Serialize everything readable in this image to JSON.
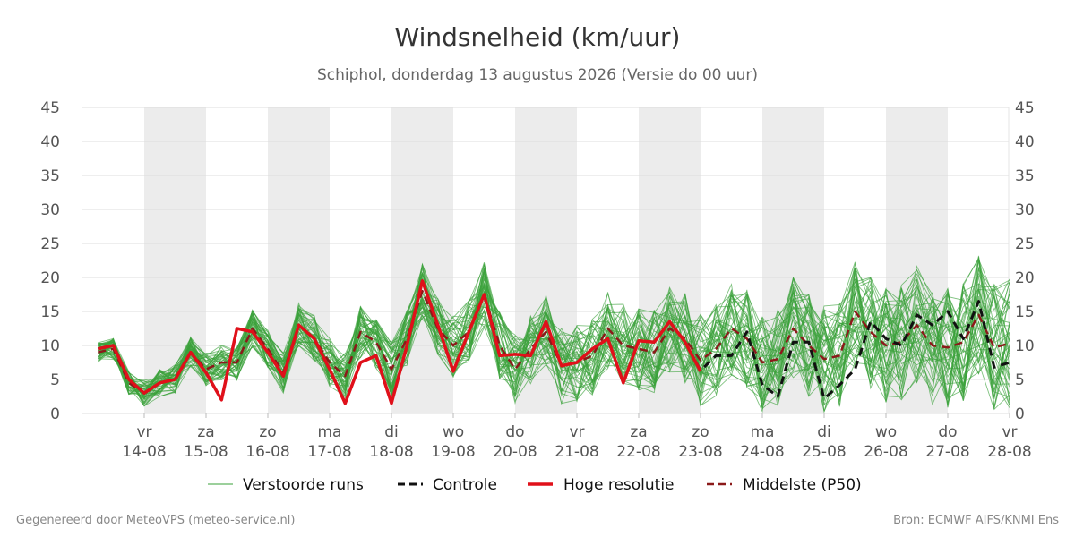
{
  "chart_data": {
    "type": "line",
    "title": "Windsnelheid (km/uur)",
    "subtitle": "Schiphol, donderdag 13 augustus 2026 (Versie do 00 uur)",
    "ylim": [
      0,
      45
    ],
    "yticks": [
      0,
      5,
      10,
      15,
      20,
      25,
      30,
      35,
      40,
      45
    ],
    "xlim": [
      -0.75,
      14
    ],
    "x_ticks": [
      {
        "day": "vr",
        "date": "14-08",
        "x": 0
      },
      {
        "day": "za",
        "date": "15-08",
        "x": 1
      },
      {
        "day": "zo",
        "date": "16-08",
        "x": 2
      },
      {
        "day": "ma",
        "date": "17-08",
        "x": 3
      },
      {
        "day": "di",
        "date": "18-08",
        "x": 4
      },
      {
        "day": "wo",
        "date": "19-08",
        "x": 5
      },
      {
        "day": "do",
        "date": "20-08",
        "x": 6
      },
      {
        "day": "vr",
        "date": "21-08",
        "x": 7
      },
      {
        "day": "za",
        "date": "22-08",
        "x": 8
      },
      {
        "day": "zo",
        "date": "23-08",
        "x": 9
      },
      {
        "day": "ma",
        "date": "24-08",
        "x": 10
      },
      {
        "day": "di",
        "date": "25-08",
        "x": 11
      },
      {
        "day": "wo",
        "date": "26-08",
        "x": 12
      },
      {
        "day": "do",
        "date": "27-08",
        "x": 13
      },
      {
        "day": "vr",
        "date": "28-08",
        "x": 14
      }
    ],
    "shaded_days": [
      0,
      2,
      4,
      6,
      8,
      10,
      12
    ],
    "grid": true,
    "legend_position": "bottom",
    "series": [
      {
        "name": "Hoge resolutie",
        "style": "solid",
        "color": "#e0101a",
        "x": [
          -0.75,
          -0.5,
          -0.25,
          0,
          0.25,
          0.5,
          0.75,
          1,
          1.25,
          1.5,
          1.75,
          2,
          2.25,
          2.5,
          2.75,
          3,
          3.25,
          3.5,
          3.75,
          4,
          4.25,
          4.5,
          4.75,
          5,
          5.25,
          5.5,
          5.75,
          6,
          6.25,
          6.5,
          6.75,
          7,
          7.25,
          7.5,
          7.75,
          8,
          8.25,
          8.5,
          8.75,
          9
        ],
        "values": [
          9.5,
          10,
          5,
          3,
          4.5,
          5,
          9,
          6,
          2,
          12.5,
          12,
          9,
          5.5,
          13,
          11,
          6.5,
          1.5,
          7.5,
          8.5,
          1.5,
          10,
          19.5,
          13,
          6.2,
          12,
          17.5,
          8.5,
          8.7,
          8.5,
          13.5,
          7,
          7.5,
          9.5,
          11,
          4.5,
          10.7,
          10.5,
          13.5,
          10.5,
          6.2
        ]
      },
      {
        "name": "Controle",
        "style": "dashed",
        "color": "#111111",
        "x": [
          -0.75,
          -0.5,
          -0.25,
          0,
          0.25,
          0.5,
          0.75,
          1,
          1.25,
          1.5,
          1.75,
          2,
          2.25,
          2.5,
          2.75,
          3,
          3.25,
          3.5,
          3.75,
          4,
          4.25,
          4.5,
          4.75,
          5,
          5.25,
          5.5,
          5.75,
          6,
          6.25,
          6.5,
          6.75,
          7,
          7.25,
          7.5,
          7.75,
          8,
          8.25,
          8.5,
          8.75,
          9,
          9.25,
          9.5,
          9.75,
          10,
          10.25,
          10.5,
          10.75,
          11,
          11.25,
          11.5,
          11.75,
          12,
          12.25,
          12.5,
          12.75,
          13,
          13.25,
          13.5,
          13.75,
          14
        ],
        "values": [
          9.5,
          10,
          5,
          3,
          4.5,
          5,
          9,
          6,
          2,
          12.5,
          12,
          9,
          5.5,
          13,
          11,
          6.5,
          1.5,
          7.5,
          8.5,
          1.5,
          10,
          19.5,
          13,
          6.2,
          12,
          17.5,
          8.5,
          8.7,
          8.5,
          13.5,
          7,
          7.5,
          9.5,
          11,
          4.5,
          10.7,
          10.5,
          13.5,
          10.5,
          6.3,
          8.5,
          8.5,
          12,
          4.2,
          2.5,
          10.5,
          10.5,
          2.2,
          4.2,
          6.5,
          13.5,
          11,
          10,
          14.5,
          13,
          15,
          11,
          16.5,
          6.8,
          7.5
        ]
      },
      {
        "name": "Middelste (P50)",
        "style": "dashed",
        "color": "#8b1a1a",
        "x": [
          -0.75,
          -0.5,
          -0.25,
          0,
          0.25,
          0.5,
          0.75,
          1,
          1.25,
          1.5,
          1.75,
          2,
          2.25,
          2.5,
          2.75,
          3,
          3.25,
          3.5,
          3.75,
          4,
          4.25,
          4.5,
          4.75,
          5,
          5.25,
          5.5,
          5.75,
          6,
          6.25,
          6.5,
          6.75,
          7,
          7.25,
          7.5,
          7.75,
          8,
          8.25,
          8.5,
          8.75,
          9,
          9.25,
          9.5,
          9.75,
          10,
          10.25,
          10.5,
          10.75,
          11,
          11.25,
          11.5,
          11.75,
          12,
          12.25,
          12.5,
          12.75,
          13,
          13.25,
          13.5,
          13.75,
          14
        ],
        "values": [
          9,
          9.5,
          4.5,
          3,
          4.5,
          5,
          9,
          6.5,
          7.5,
          7.5,
          12.5,
          9.5,
          6,
          13,
          11,
          7.5,
          5.5,
          12,
          10.5,
          6.5,
          11,
          18,
          12.5,
          10,
          12,
          17.5,
          10,
          6.5,
          9.5,
          12,
          7,
          7.5,
          8.5,
          12.5,
          10,
          9.5,
          9,
          12.5,
          11,
          7.8,
          9.5,
          12.5,
          11,
          7.5,
          8,
          12.5,
          10,
          8,
          8.5,
          15,
          12,
          10,
          10.5,
          13,
          10,
          9.7,
          10.5,
          14.5,
          9.7,
          10.3
        ]
      }
    ],
    "ensemble": {
      "name": "Verstoorde runs",
      "color": "#3aa13a",
      "count": 50
    }
  },
  "footer": {
    "left": "Gegenereerd door MeteoVPS (meteo-service.nl)",
    "right": "Bron: ECMWF AIFS/KNMI Ens"
  }
}
